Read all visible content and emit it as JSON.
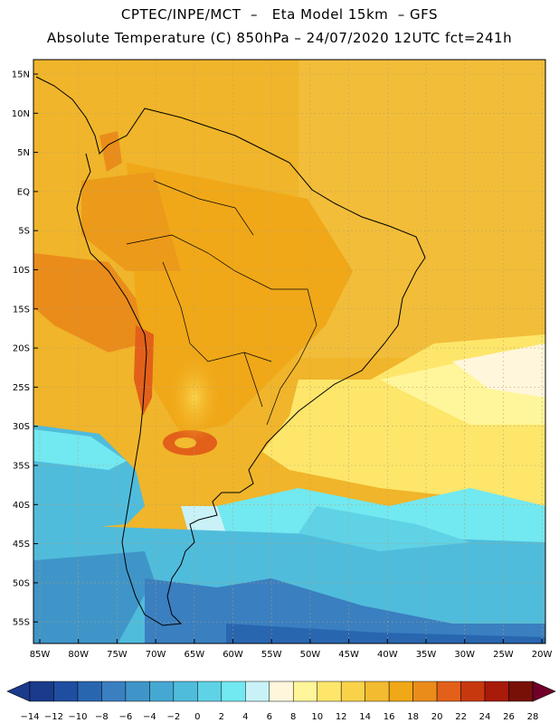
{
  "header": {
    "line1": "CPTEC/INPE/MCT  –   Eta Model 15km  – GFS",
    "line2": "Absolute Temperature (C) 850hPa – 24/07/2020 12UTC fct=241h"
  },
  "axes": {
    "lat_labels": [
      "15N",
      "10N",
      "5N",
      "EQ",
      "5S",
      "10S",
      "15S",
      "20S",
      "25S",
      "30S",
      "35S",
      "40S",
      "45S",
      "50S",
      "55S"
    ],
    "lon_labels": [
      "85W",
      "80W",
      "75W",
      "70W",
      "65W",
      "60W",
      "55W",
      "50W",
      "45W",
      "40W",
      "35W",
      "30W",
      "25W",
      "20W"
    ]
  },
  "colorbar": {
    "labels": [
      "-14",
      "-12",
      "-10",
      "-8",
      "-6",
      "-4",
      "-2",
      "0",
      "2",
      "4",
      "6",
      "8",
      "10",
      "12",
      "14",
      "16",
      "18",
      "20",
      "22",
      "24",
      "26",
      "28"
    ],
    "colors": [
      "#1a3a8c",
      "#1f4ea0",
      "#2866b0",
      "#3a7fc0",
      "#3f95c8",
      "#45a8d2",
      "#50bcdc",
      "#5fd2e6",
      "#72e8f0",
      "#c8f2f8",
      "#fff6dc",
      "#fff59a",
      "#fde66a",
      "#fad24a",
      "#f3bb30",
      "#f0a818",
      "#ea8c1a",
      "#e2601a",
      "#c8380e",
      "#a81a0a",
      "#781008"
    ],
    "under_color": "#1a3a8c",
    "over_color": "#70002a"
  }
}
